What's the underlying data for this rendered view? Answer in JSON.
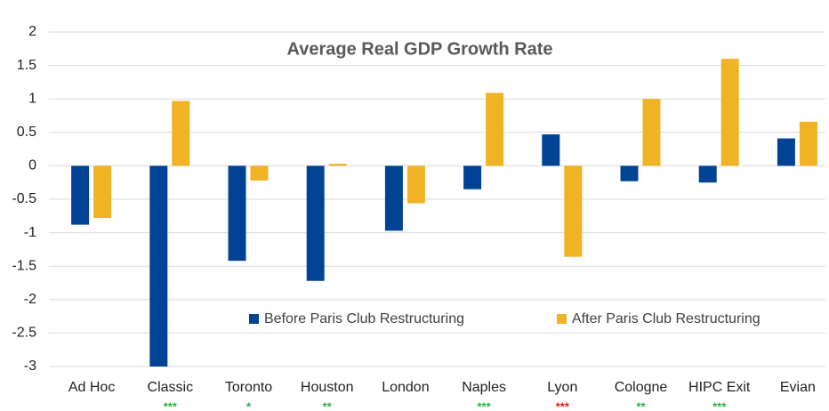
{
  "chart_data": {
    "type": "bar",
    "title": "Average Real GDP Growth Rate",
    "categories": [
      "Ad Hoc",
      "Classic",
      "Toronto",
      "Houston",
      "London",
      "Naples",
      "Lyon",
      "Cologne",
      "HIPC Exit",
      "Evian"
    ],
    "series": [
      {
        "name": "Before Paris Club Restructuring",
        "color": "#004394",
        "values": [
          -0.88,
          -3.0,
          -1.42,
          -1.72,
          -0.97,
          -0.35,
          0.47,
          -0.23,
          -0.25,
          0.41
        ]
      },
      {
        "name": "After Paris Club Restructuring",
        "color": "#f0b323",
        "values": [
          -0.78,
          0.97,
          -0.22,
          0.03,
          -0.56,
          1.09,
          -1.36,
          1.0,
          1.6,
          0.66
        ]
      }
    ],
    "significance": [
      null,
      "***",
      "*",
      "**",
      null,
      "***",
      "***",
      "**",
      "***",
      null
    ],
    "significance_colors": [
      null,
      "#2db34a",
      "#2db34a",
      "#2db34a",
      null,
      "#2db34a",
      "#e02020",
      "#2db34a",
      "#2db34a",
      null
    ],
    "ylim": [
      -3,
      2
    ],
    "yticks": [
      2,
      1.5,
      1,
      0.5,
      0,
      -0.5,
      -1,
      -1.5,
      -2,
      -2.5,
      -3
    ],
    "grid": true,
    "legend": "lower center"
  }
}
